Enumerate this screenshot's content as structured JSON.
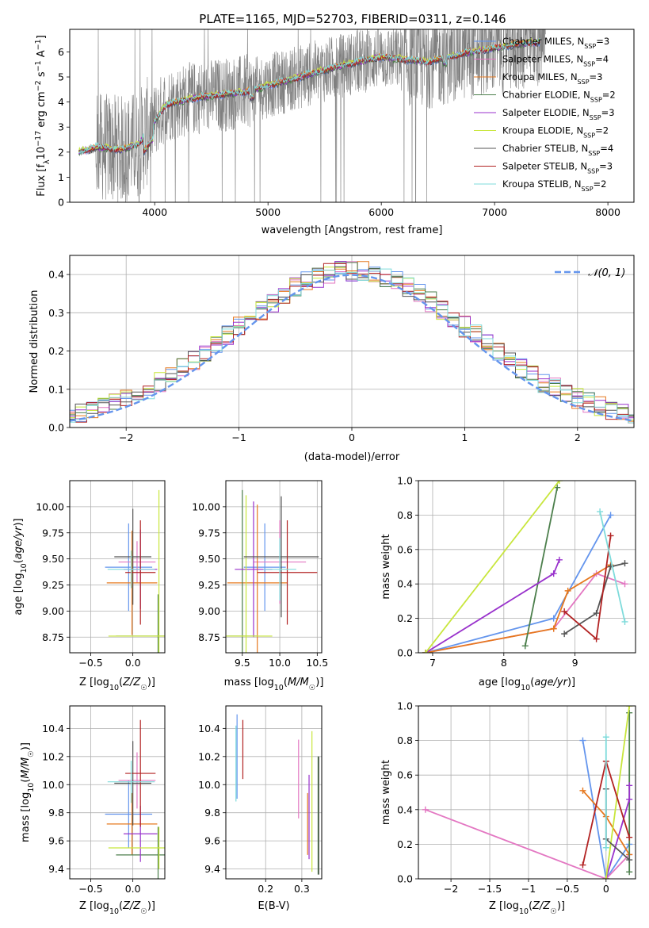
{
  "figure_title": "PLATE=1165, MJD=52703, FIBERID=0311, z=0.146",
  "chart_data": [
    {
      "id": "spectrum",
      "type": "line",
      "title": "PLATE=1165, MJD=52703, FIBERID=0311, z=0.146",
      "xlabel": "wavelength [Angstrom, rest frame]",
      "ylabel": "Flux [f_λ 10^-17 erg cm^-2 s^-1 A^-1]",
      "xlim": [
        3250,
        8230
      ],
      "ylim": [
        0,
        6.9
      ],
      "xticks": [
        4000,
        5000,
        6000,
        7000,
        8000
      ],
      "yticks": [
        0,
        1,
        2,
        3,
        4,
        5,
        6
      ],
      "legend_position": "top-right",
      "continuum_knots": [
        [
          3330,
          2.0
        ],
        [
          3500,
          2.2
        ],
        [
          3700,
          2.1
        ],
        [
          3850,
          2.3
        ],
        [
          3950,
          2.9
        ],
        [
          4100,
          3.9
        ],
        [
          4400,
          4.2
        ],
        [
          4800,
          4.4
        ],
        [
          5200,
          4.9
        ],
        [
          5600,
          5.4
        ],
        [
          6000,
          5.8
        ],
        [
          6400,
          5.6
        ],
        [
          6800,
          6.0
        ],
        [
          7200,
          6.3
        ],
        [
          7400,
          6.4
        ]
      ],
      "series": [
        {
          "name": "Chabrier MILES",
          "nssp": "3",
          "color": "#6495ED"
        },
        {
          "name": "Salpeter MILES",
          "nssp": "4",
          "color": "#E377C2"
        },
        {
          "name": "Kroupa MILES",
          "nssp": "3",
          "color": "#E6781E"
        },
        {
          "name": "Chabrier ELODIE",
          "nssp": "2",
          "color": "#4C7F4C"
        },
        {
          "name": "Salpeter ELODIE",
          "nssp": "3",
          "color": "#9932CC"
        },
        {
          "name": "Kroupa ELODIE",
          "nssp": "2",
          "color": "#C8E63C"
        },
        {
          "name": "Chabrier STELIB",
          "nssp": "4",
          "color": "#555555"
        },
        {
          "name": "Salpeter STELIB",
          "nssp": "3",
          "color": "#B22222"
        },
        {
          "name": "Kroupa STELIB",
          "nssp": "2",
          "color": "#7FDBDB"
        }
      ]
    },
    {
      "id": "residuals",
      "type": "line",
      "xlabel": "(data-model)/error",
      "ylabel": "Normed distribution",
      "xlim": [
        -2.5,
        2.5
      ],
      "ylim": [
        0,
        0.45
      ],
      "xticks": [
        -2,
        -1,
        0,
        1,
        2
      ],
      "yticks": [
        0.0,
        0.1,
        0.2,
        0.3,
        0.4
      ],
      "legend": "𝒩(0, 1)",
      "legend_position": "top-right",
      "grid": true
    },
    {
      "id": "age_vs_z",
      "type": "scatter",
      "xlabel": "Z [log10(Z/Z☉)]",
      "ylabel": "age [log10(age/yr)]",
      "xlim": [
        -0.75,
        0.38
      ],
      "ylim": [
        8.6,
        10.25
      ],
      "xticks": [
        -0.5,
        0.0,
        0.5
      ],
      "yticks": [
        8.75,
        9.0,
        9.25,
        9.5,
        9.75,
        10.0
      ],
      "grid": true,
      "points": [
        {
          "color": "#6495ED",
          "x": -0.05,
          "y": 9.42,
          "ex": 0.28,
          "ey": 0.42
        },
        {
          "color": "#E377C2",
          "x": 0.05,
          "y": 9.47,
          "ex": 0.22,
          "ey": 0.2
        },
        {
          "color": "#E6781E",
          "x": -0.01,
          "y": 9.27,
          "ex": 0.3,
          "ey": 0.5
        },
        {
          "color": "#4C7F4C",
          "x": 0.3,
          "y": 8.76,
          "ex": 0.5,
          "ey": 0.4
        },
        {
          "color": "#9932CC",
          "x": 0.09,
          "y": 9.4,
          "ex": 0.2,
          "ey": 0.38
        },
        {
          "color": "#C8E63C",
          "x": 0.31,
          "y": 8.76,
          "ex": 0.6,
          "ey": 1.4
        },
        {
          "color": "#555555",
          "x": 0.0,
          "y": 9.52,
          "ex": 0.22,
          "ey": 0.46
        },
        {
          "color": "#B22222",
          "x": 0.09,
          "y": 9.37,
          "ex": 0.18,
          "ey": 0.5
        },
        {
          "color": "#7FDBDB",
          "x": -0.02,
          "y": 9.4,
          "ex": 0.28,
          "ey": 0.18
        }
      ]
    },
    {
      "id": "age_vs_mass",
      "type": "scatter",
      "xlabel": "mass [log10(M/M☉)]",
      "xlim": [
        9.28,
        10.56
      ],
      "ylim": [
        8.6,
        10.25
      ],
      "xticks": [
        9.5,
        10.0,
        10.5
      ],
      "yticks": [
        8.75,
        9.0,
        9.25,
        9.5,
        9.75,
        10.0
      ],
      "grid": true,
      "points": [
        {
          "color": "#6495ED",
          "x": 9.8,
          "y": 9.42,
          "ex": 0.28,
          "ey": 0.42
        },
        {
          "color": "#E377C2",
          "x": 10.0,
          "y": 9.47,
          "ex": 0.35,
          "ey": 0.4
        },
        {
          "color": "#E6781E",
          "x": 9.7,
          "y": 9.27,
          "ex": 0.4,
          "ey": 0.75
        },
        {
          "color": "#4C7F4C",
          "x": 9.5,
          "y": 8.76,
          "ex": 0.2,
          "ey": 1.4
        },
        {
          "color": "#9932CC",
          "x": 9.65,
          "y": 9.4,
          "ex": 0.25,
          "ey": 0.65
        },
        {
          "color": "#C8E63C",
          "x": 9.55,
          "y": 8.76,
          "ex": 0.35,
          "ey": 1.35
        },
        {
          "color": "#555555",
          "x": 10.02,
          "y": 9.52,
          "ex": 0.5,
          "ey": 0.58
        },
        {
          "color": "#B22222",
          "x": 10.1,
          "y": 9.37,
          "ex": 0.4,
          "ey": 0.5
        },
        {
          "color": "#7FDBDB",
          "x": 10.0,
          "y": 9.4,
          "ex": 0.22,
          "ey": 0.3
        }
      ]
    },
    {
      "id": "mass_weight_vs_age",
      "type": "line",
      "xlabel": "age [log10(age/yr)]",
      "ylabel": "mass weight",
      "xlim": [
        6.8,
        9.85
      ],
      "ylim": [
        0,
        1.0
      ],
      "xticks": [
        7,
        8,
        9
      ],
      "yticks": [
        0.0,
        0.2,
        0.4,
        0.6,
        0.8,
        1.0
      ],
      "grid": true,
      "series": [
        {
          "color": "#6495ED",
          "points": [
            [
              6.9,
              0.0
            ],
            [
              8.7,
              0.2
            ],
            [
              9.5,
              0.8
            ]
          ]
        },
        {
          "color": "#E377C2",
          "points": [
            [
              6.9,
              0.0
            ],
            [
              8.7,
              0.14
            ],
            [
              9.3,
              0.46
            ],
            [
              9.7,
              0.4
            ]
          ]
        },
        {
          "color": "#E6781E",
          "points": [
            [
              6.9,
              0.0
            ],
            [
              8.7,
              0.14
            ],
            [
              8.9,
              0.36
            ],
            [
              9.5,
              0.51
            ]
          ]
        },
        {
          "color": "#4C7F4C",
          "points": [
            [
              8.3,
              0.04
            ],
            [
              8.75,
              0.96
            ]
          ]
        },
        {
          "color": "#9932CC",
          "points": [
            [
              6.9,
              0.0
            ],
            [
              8.7,
              0.46
            ],
            [
              8.78,
              0.54
            ]
          ]
        },
        {
          "color": "#C8E63C",
          "points": [
            [
              6.9,
              0.0
            ],
            [
              8.78,
              1.0
            ]
          ]
        },
        {
          "color": "#555555",
          "points": [
            [
              8.85,
              0.11
            ],
            [
              9.3,
              0.23
            ],
            [
              9.5,
              0.5
            ],
            [
              9.7,
              0.52
            ]
          ]
        },
        {
          "color": "#B22222",
          "points": [
            [
              8.85,
              0.24
            ],
            [
              9.3,
              0.08
            ],
            [
              9.5,
              0.68
            ]
          ]
        },
        {
          "color": "#7FDBDB",
          "points": [
            [
              9.35,
              0.82
            ],
            [
              9.7,
              0.18
            ]
          ]
        }
      ]
    },
    {
      "id": "mass_vs_z",
      "type": "scatter",
      "xlabel": "Z [log10(Z/Z☉)]",
      "ylabel": "mass [log10(M/M☉)]",
      "xlim": [
        -0.75,
        0.38
      ],
      "ylim": [
        9.33,
        10.56
      ],
      "xticks": [
        -0.5,
        0.0,
        0.5
      ],
      "yticks": [
        9.4,
        9.6,
        9.8,
        10.0,
        10.2,
        10.4
      ],
      "grid": true,
      "points": [
        {
          "color": "#6495ED",
          "x": -0.05,
          "y": 9.79,
          "ex": 0.28,
          "ey": 0.24
        },
        {
          "color": "#E377C2",
          "x": 0.05,
          "y": 10.03,
          "ex": 0.22,
          "ey": 0.2
        },
        {
          "color": "#E6781E",
          "x": -0.01,
          "y": 9.72,
          "ex": 0.3,
          "ey": 0.22
        },
        {
          "color": "#4C7F4C",
          "x": 0.3,
          "y": 9.5,
          "ex": 0.5,
          "ey": 0.2
        },
        {
          "color": "#9932CC",
          "x": 0.09,
          "y": 9.65,
          "ex": 0.2,
          "ey": 0.2
        },
        {
          "color": "#C8E63C",
          "x": 0.31,
          "y": 9.55,
          "ex": 0.6,
          "ey": 0.15
        },
        {
          "color": "#555555",
          "x": 0.0,
          "y": 10.01,
          "ex": 0.22,
          "ey": 0.3
        },
        {
          "color": "#B22222",
          "x": 0.09,
          "y": 10.08,
          "ex": 0.18,
          "ey": 0.38
        },
        {
          "color": "#7FDBDB",
          "x": -0.02,
          "y": 10.02,
          "ex": 0.28,
          "ey": 0.15
        }
      ]
    },
    {
      "id": "mass_vs_ebv",
      "type": "scatter",
      "xlabel": "E(B-V)",
      "xlim": [
        0.09,
        0.355
      ],
      "ylim": [
        9.33,
        10.56
      ],
      "xticks": [
        0.2,
        0.3
      ],
      "yticks": [
        9.4,
        9.6,
        9.8,
        10.0,
        10.2,
        10.4
      ],
      "grid": true,
      "points": [
        {
          "color": "#6495ED",
          "x": 0.121,
          "y": 10.2,
          "ey": 0.3
        },
        {
          "color": "#E377C2",
          "x": 0.291,
          "y": 10.04,
          "ey": 0.28
        },
        {
          "color": "#E6781E",
          "x": 0.316,
          "y": 9.72,
          "ey": 0.22
        },
        {
          "color": "#4C7F4C",
          "x": 0.345,
          "y": 9.78,
          "ey": 0.42
        },
        {
          "color": "#9932CC",
          "x": 0.32,
          "y": 9.77,
          "ey": 0.3
        },
        {
          "color": "#C8E63C",
          "x": 0.328,
          "y": 9.88,
          "ey": 0.5
        },
        {
          "color": "#555555",
          "x": 0.347,
          "y": 9.78,
          "ey": 0.42
        },
        {
          "color": "#B22222",
          "x": 0.137,
          "y": 10.25,
          "ey": 0.21
        },
        {
          "color": "#7FDBDB",
          "x": 0.118,
          "y": 10.15,
          "ey": 0.27
        }
      ]
    },
    {
      "id": "mass_weight_vs_z",
      "type": "line",
      "xlabel": "Z [log10(Z/Z☉)]",
      "ylabel": "mass weight",
      "xlim": [
        -2.42,
        0.38
      ],
      "ylim": [
        0,
        1.0
      ],
      "xticks": [
        -2.0,
        -1.5,
        -1.0,
        -0.5,
        0.0
      ],
      "yticks": [
        0.0,
        0.2,
        0.4,
        0.6,
        0.8,
        1.0
      ],
      "grid": true,
      "series": [
        {
          "color": "#6495ED",
          "points": [
            [
              -0.3,
              0.8
            ],
            [
              0.0,
              0.0
            ],
            [
              0.3,
              0.2
            ]
          ]
        },
        {
          "color": "#E377C2",
          "points": [
            [
              -2.33,
              0.4
            ],
            [
              0.0,
              0.0
            ],
            [
              0.3,
              0.14
            ]
          ]
        },
        {
          "color": "#E6781E",
          "points": [
            [
              -0.3,
              0.51
            ],
            [
              0.0,
              0.36
            ],
            [
              0.3,
              0.14
            ]
          ]
        },
        {
          "color": "#4C7F4C",
          "points": [
            [
              0.3,
              0.96
            ],
            [
              0.3,
              0.04
            ]
          ]
        },
        {
          "color": "#9932CC",
          "points": [
            [
              0.3,
              0.54
            ],
            [
              0.3,
              0.46
            ],
            [
              0.0,
              0.0
            ]
          ]
        },
        {
          "color": "#C8E63C",
          "points": [
            [
              0.3,
              1.0
            ],
            [
              0.0,
              0.0
            ]
          ]
        },
        {
          "color": "#555555",
          "points": [
            [
              0.0,
              0.52
            ],
            [
              0.0,
              0.23
            ],
            [
              0.3,
              0.11
            ]
          ]
        },
        {
          "color": "#B22222",
          "points": [
            [
              -0.3,
              0.08
            ],
            [
              0.0,
              0.68
            ],
            [
              0.3,
              0.24
            ]
          ]
        },
        {
          "color": "#7FDBDB",
          "points": [
            [
              0.0,
              0.82
            ],
            [
              0.0,
              0.18
            ]
          ]
        }
      ]
    }
  ]
}
